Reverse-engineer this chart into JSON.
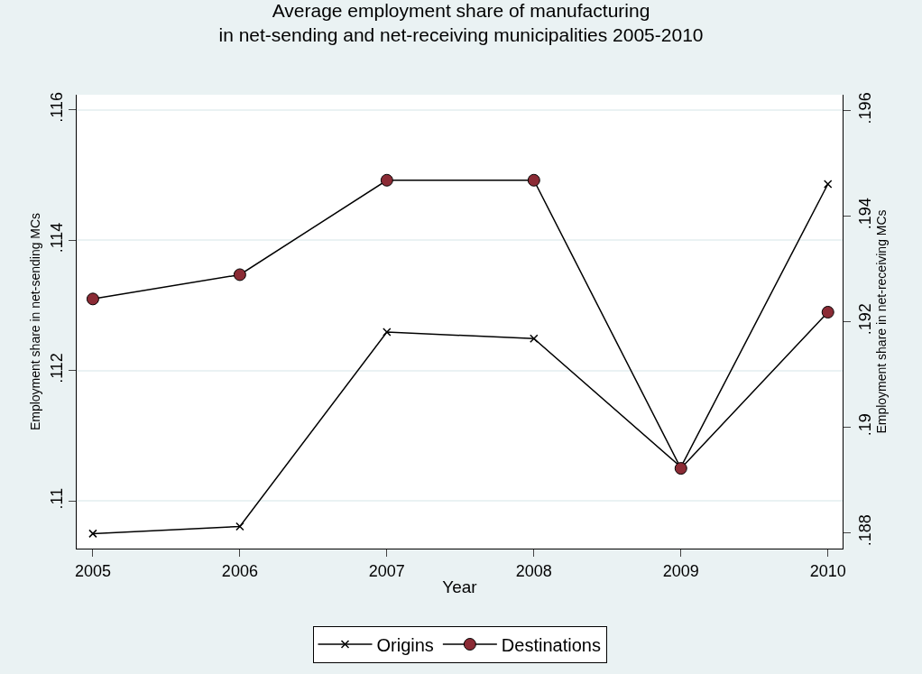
{
  "chart_data": {
    "type": "line",
    "title": "Average employment share of manufacturing\nin net-sending and net-receiving municipalities 2005-2010",
    "xlabel": "Year",
    "ylabel": "Employment share in net-sending MCs",
    "y2label": "Employment share in net-receiving MCs",
    "x": [
      2005,
      2006,
      2007,
      2008,
      2009,
      2010
    ],
    "series": [
      {
        "name": "Origins",
        "color": "#000000",
        "marker": "cross",
        "values": [
          0.1095,
          0.10961,
          0.11259,
          0.11249,
          0.11052,
          0.11486
        ]
      },
      {
        "name": "Destinations",
        "color": "#8b2b35",
        "marker": "circle",
        "axis": "y2",
        "values": [
          0.19243,
          0.19289,
          0.19468,
          0.19468,
          0.18922,
          0.19218
        ]
      }
    ],
    "xlim": [
      2004.89,
      2010.1
    ],
    "xticks": [
      2005,
      2006,
      2007,
      2008,
      2009,
      2010
    ],
    "ylim": [
      0.10927,
      0.11623
    ],
    "yticks": [
      {
        "value": 0.11,
        "label": ".11"
      },
      {
        "value": 0.112,
        "label": ".112"
      },
      {
        "value": 0.114,
        "label": ".114"
      },
      {
        "value": 0.116,
        "label": ".116"
      }
    ],
    "y2lim": [
      0.1877,
      0.1963
    ],
    "y2ticks": [
      {
        "value": 0.188,
        "label": ".188"
      },
      {
        "value": 0.19,
        "label": ".19"
      },
      {
        "value": 0.192,
        "label": ".192"
      },
      {
        "value": 0.194,
        "label": ".194"
      },
      {
        "value": 0.196,
        "label": ".196"
      }
    ],
    "grid": "y",
    "legend": "bottom",
    "line_style": "solid"
  }
}
